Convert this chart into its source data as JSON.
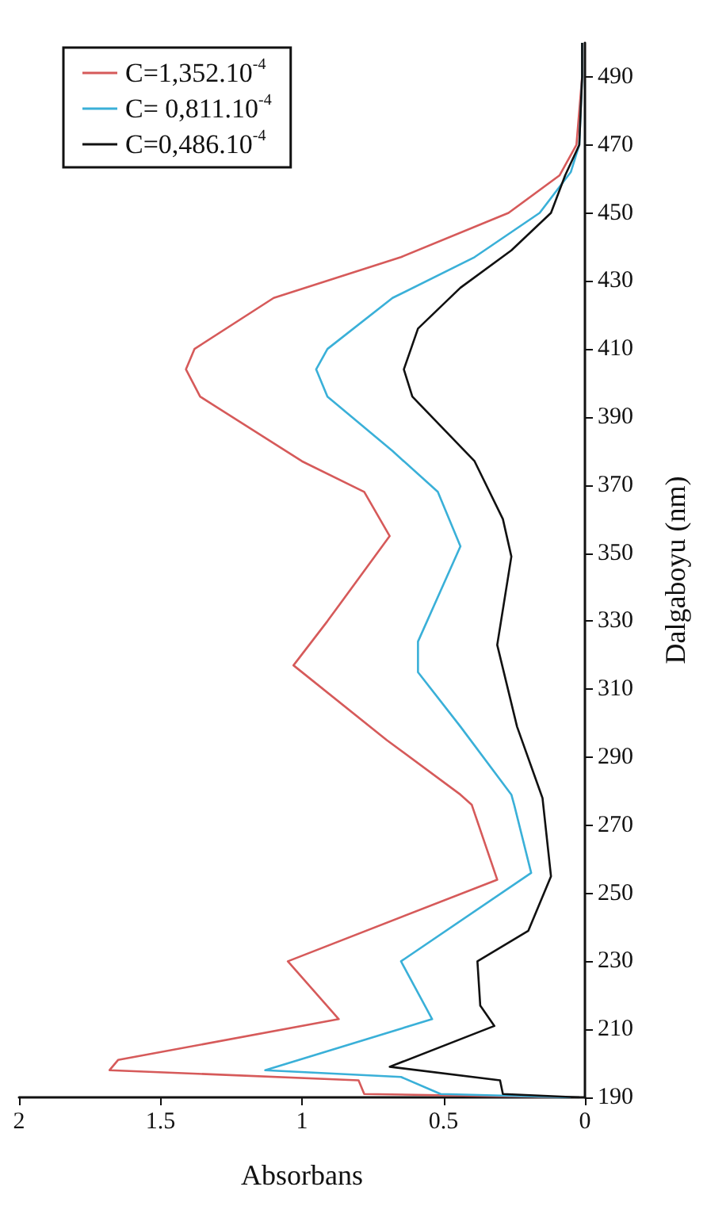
{
  "chart_data": {
    "type": "line",
    "xlabel": "Absorbans",
    "ylabel": "Dalgaboyu (nm)",
    "xlim": [
      2,
      0
    ],
    "ylim": [
      190,
      500
    ],
    "xticks": [
      2,
      1.5,
      1,
      0.5,
      0
    ],
    "yticks": [
      190,
      210,
      230,
      250,
      270,
      290,
      310,
      330,
      350,
      370,
      390,
      410,
      430,
      450,
      470,
      490
    ],
    "grid": false,
    "legend": "top left",
    "marker": "none",
    "line_style": "solid",
    "series": [
      {
        "name": "C=1,352.10$^{-4}$",
        "color": "#d65a5a",
        "x": [
          0.05,
          0.78,
          0.8,
          1.68,
          1.65,
          0.87,
          1.05,
          0.31,
          0.4,
          0.44,
          0.7,
          1.03,
          0.91,
          0.69,
          0.78,
          1.0,
          1.36,
          1.41,
          1.38,
          1.1,
          0.65,
          0.27,
          0.09,
          0.03,
          0.01,
          0.01
        ],
        "values": [
          190,
          191,
          195,
          198,
          201,
          213,
          230,
          254,
          276,
          279,
          295,
          317,
          330,
          355,
          368,
          377,
          396,
          404,
          410,
          425,
          437,
          450,
          461,
          470,
          490,
          500
        ]
      },
      {
        "name": "C= 0,811.10$^{-4}$",
        "color": "#3ab0d8",
        "x": [
          0.05,
          0.51,
          0.65,
          1.13,
          0.54,
          0.65,
          0.19,
          0.25,
          0.26,
          0.44,
          0.59,
          0.59,
          0.44,
          0.52,
          0.68,
          0.91,
          0.95,
          0.91,
          0.68,
          0.39,
          0.16,
          0.05,
          0.02,
          0.01,
          0.01
        ],
        "values": [
          190,
          191,
          196,
          198,
          213,
          230,
          256,
          276,
          279,
          299,
          315,
          324,
          352,
          368,
          380,
          396,
          404,
          410,
          425,
          437,
          450,
          462,
          470,
          490,
          500
        ]
      },
      {
        "name": "C=0,486.10$^{-4}$",
        "color": "#111111",
        "x": [
          0.02,
          0.29,
          0.3,
          0.69,
          0.32,
          0.37,
          0.38,
          0.2,
          0.12,
          0.15,
          0.24,
          0.31,
          0.26,
          0.29,
          0.39,
          0.61,
          0.64,
          0.59,
          0.44,
          0.26,
          0.12,
          0.07,
          0.02,
          0.01,
          0.01
        ],
        "values": [
          190,
          191,
          195,
          199,
          211,
          217,
          230,
          239,
          255,
          278,
          299,
          323,
          349,
          360,
          377,
          396,
          404,
          416,
          428,
          439,
          450,
          461,
          470,
          490,
          500
        ]
      }
    ]
  }
}
